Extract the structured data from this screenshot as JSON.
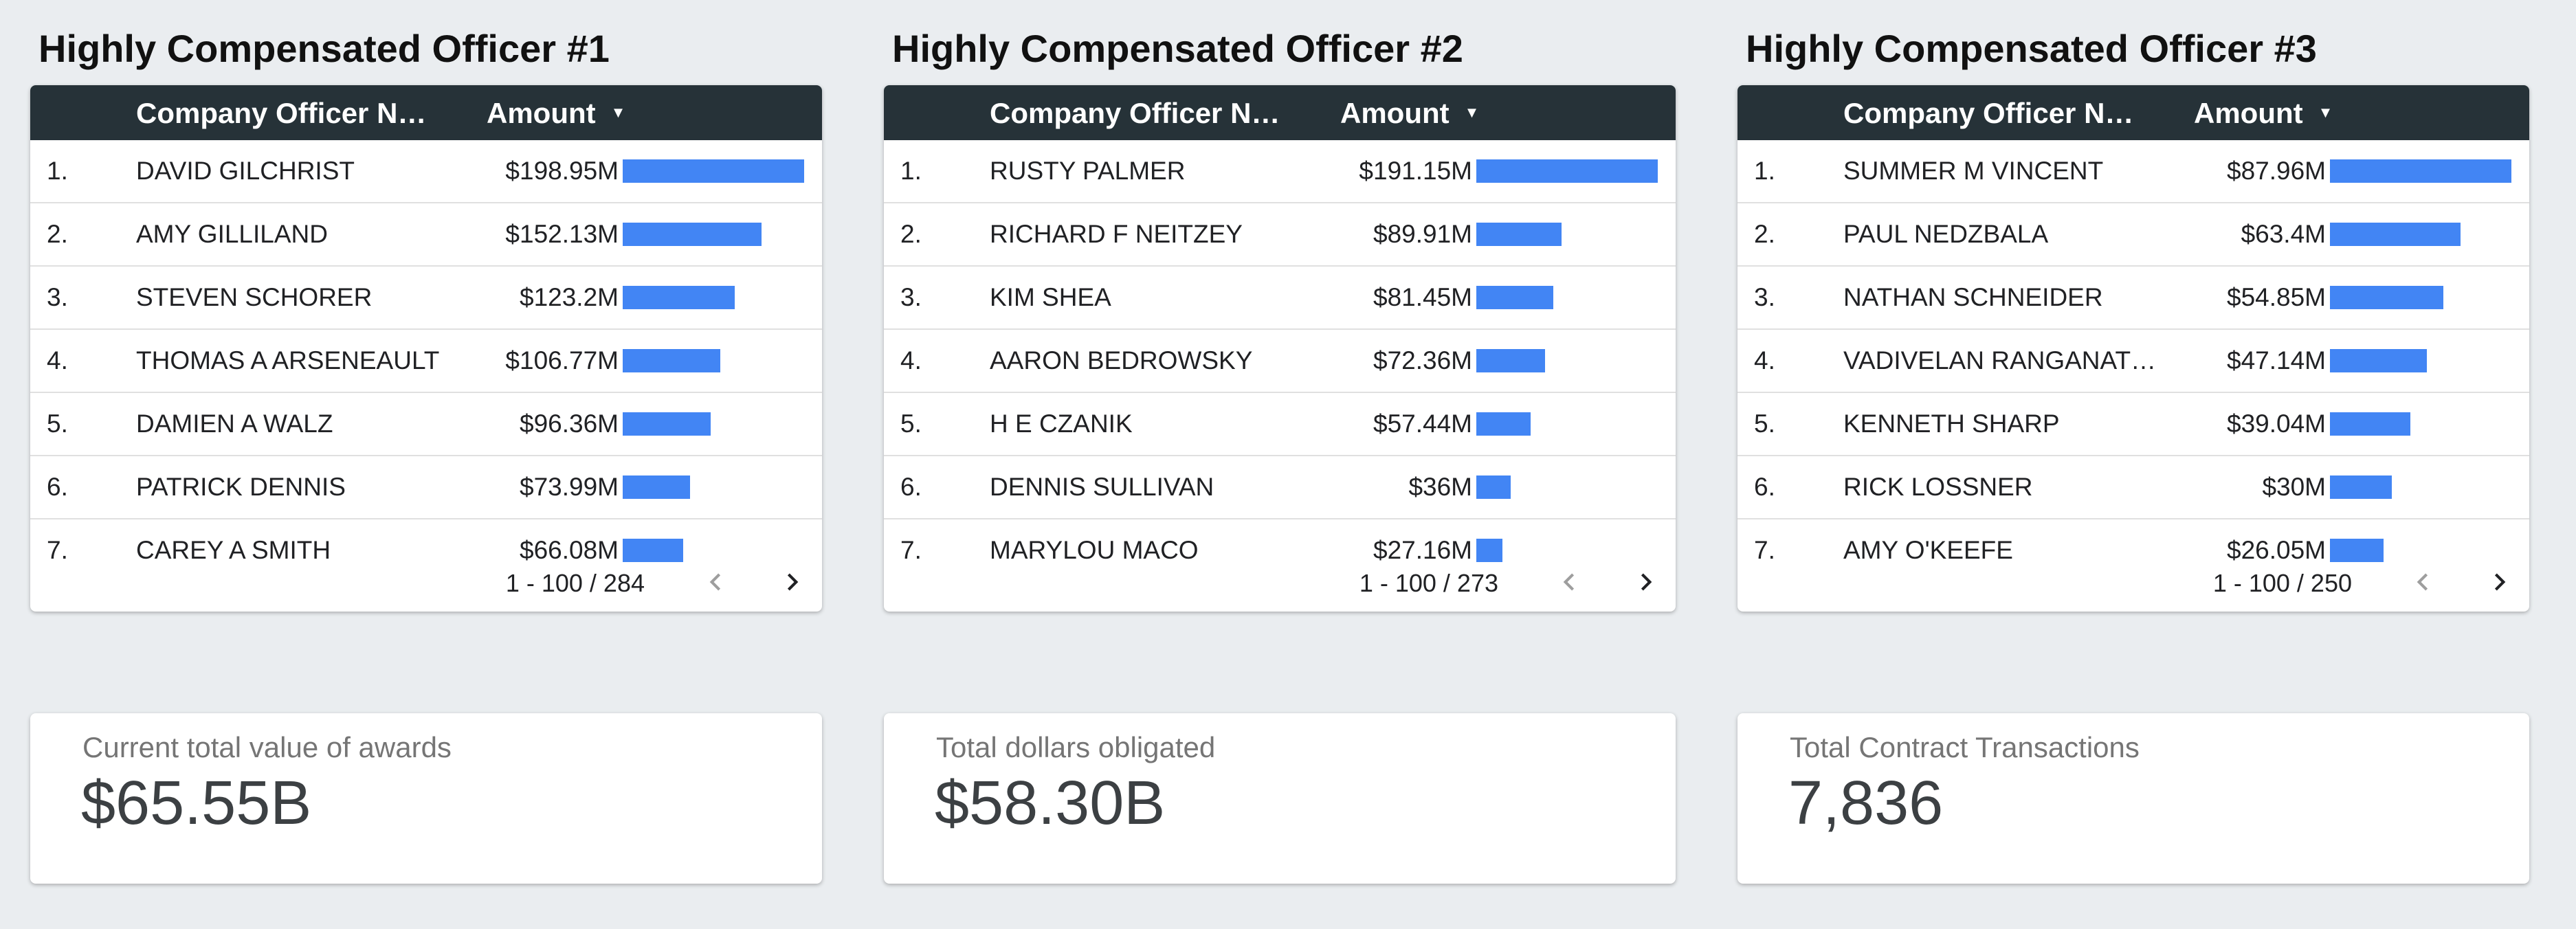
{
  "colors": {
    "background": "#eaedf0",
    "header": "#263238",
    "bar": "#4285f4"
  },
  "tables": [
    {
      "title": "Highly Compensated Officer #1",
      "col_name": "Company Officer N…",
      "col_amount": "Amount",
      "sort_icon": "caret-down-icon",
      "rows": [
        {
          "idx": "1.",
          "name": "DAVID GILCHRIST",
          "amount": "$198.95M",
          "fill": 1.0
        },
        {
          "idx": "2.",
          "name": "AMY GILLILAND",
          "amount": "$152.13M",
          "fill": 0.7647
        },
        {
          "idx": "3.",
          "name": "STEVEN SCHORER",
          "amount": "$123.2M",
          "fill": 0.6193
        },
        {
          "idx": "4.",
          "name": "THOMAS A ARSENEAULT",
          "amount": "$106.77M",
          "fill": 0.5367
        },
        {
          "idx": "5.",
          "name": "DAMIEN A WALZ",
          "amount": "$96.36M",
          "fill": 0.4843
        },
        {
          "idx": "6.",
          "name": "PATRICK DENNIS",
          "amount": "$73.99M",
          "fill": 0.3719
        },
        {
          "idx": "7.",
          "name": "CAREY A SMITH",
          "amount": "$66.08M",
          "fill": 0.3321
        }
      ],
      "pager": "1 - 100 / 284"
    },
    {
      "title": "Highly Compensated Officer #2",
      "col_name": "Company Officer N…",
      "col_amount": "Amount",
      "sort_icon": "caret-down-icon",
      "rows": [
        {
          "idx": "1.",
          "name": "RUSTY PALMER",
          "amount": "$191.15M",
          "fill": 1.0
        },
        {
          "idx": "2.",
          "name": "RICHARD F NEITZEY",
          "amount": "$89.91M",
          "fill": 0.4704
        },
        {
          "idx": "3.",
          "name": "KIM SHEA",
          "amount": "$81.45M",
          "fill": 0.4261
        },
        {
          "idx": "4.",
          "name": "AARON BEDROWSKY",
          "amount": "$72.36M",
          "fill": 0.3786
        },
        {
          "idx": "5.",
          "name": "H E CZANIK",
          "amount": "$57.44M",
          "fill": 0.3005
        },
        {
          "idx": "6.",
          "name": "DENNIS SULLIVAN",
          "amount": "$36M",
          "fill": 0.1883
        },
        {
          "idx": "7.",
          "name": "MARYLOU MACO",
          "amount": "$27.16M",
          "fill": 0.1421
        }
      ],
      "pager": "1 - 100 / 273"
    },
    {
      "title": "Highly Compensated Officer #3",
      "col_name": "Company Officer N…",
      "col_amount": "Amount",
      "sort_icon": "caret-down-icon",
      "rows": [
        {
          "idx": "1.",
          "name": "SUMMER M VINCENT",
          "amount": "$87.96M",
          "fill": 1.0
        },
        {
          "idx": "2.",
          "name": "PAUL NEDZBALA",
          "amount": "$63.4M",
          "fill": 0.7208
        },
        {
          "idx": "3.",
          "name": "NATHAN SCHNEIDER",
          "amount": "$54.85M",
          "fill": 0.6236
        },
        {
          "idx": "4.",
          "name": "VADIVELAN RANGANAT…",
          "amount": "$47.14M",
          "fill": 0.5359
        },
        {
          "idx": "5.",
          "name": "KENNETH SHARP",
          "amount": "$39.04M",
          "fill": 0.4438
        },
        {
          "idx": "6.",
          "name": "RICK LOSSNER",
          "amount": "$30M",
          "fill": 0.3411
        },
        {
          "idx": "7.",
          "name": "AMY O'KEEFE",
          "amount": "$26.05M",
          "fill": 0.2962
        }
      ],
      "pager": "1 - 100 / 250"
    }
  ],
  "kpis": [
    {
      "label": "Current total value of awards",
      "value": "$65.55B"
    },
    {
      "label": "Total dollars obligated",
      "value": "$58.30B"
    },
    {
      "label": "Total Contract Transactions",
      "value": "7,836"
    }
  ]
}
